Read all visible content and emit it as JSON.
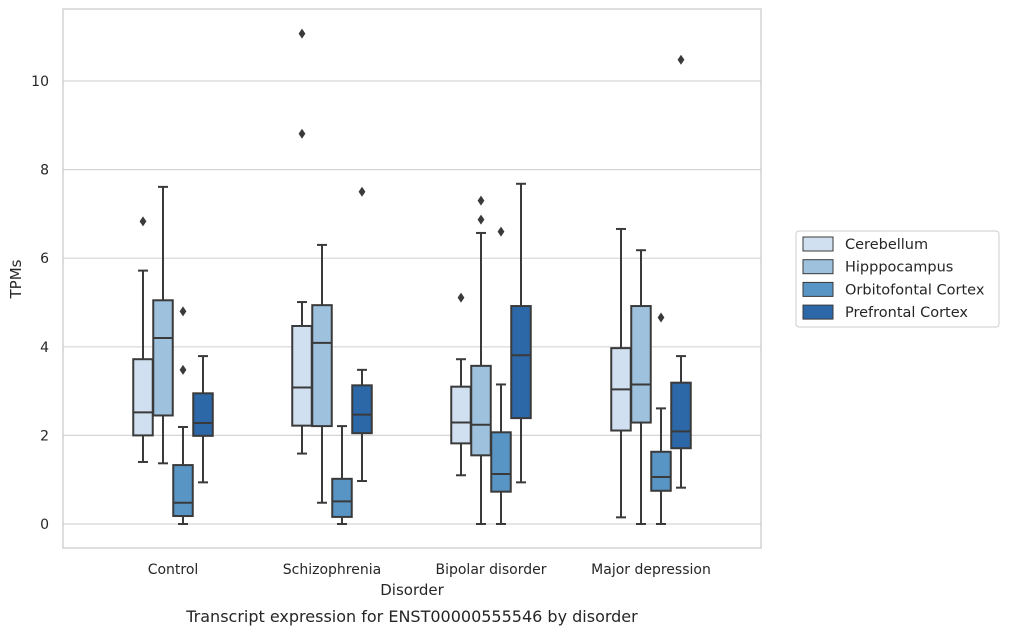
{
  "chart_data": {
    "type": "box",
    "title": "",
    "caption": "Transcript expression for ENST00000555546 by disorder",
    "xlabel": "Disorder",
    "ylabel": "TPMs",
    "ylim": [
      -0.55,
      11.6
    ],
    "yticks": [
      0,
      2,
      4,
      6,
      8,
      10
    ],
    "grid": "horizontal",
    "legend_position": "right",
    "categories": [
      "Control",
      "Schizophrenia",
      "Bipolar disorder",
      "Major depression"
    ],
    "series": [
      {
        "name": "Cerebellum",
        "color": "#d0e0f0",
        "boxes": [
          {
            "whisker_low": 1.4,
            "q1": 2.0,
            "median": 2.52,
            "q3": 3.72,
            "whisker_high": 5.72,
            "outliers": [
              6.83
            ]
          },
          {
            "whisker_low": 1.59,
            "q1": 2.22,
            "median": 3.08,
            "q3": 4.47,
            "whisker_high": 5.01,
            "outliers": [
              8.81,
              11.07
            ]
          },
          {
            "whisker_low": 1.1,
            "q1": 1.82,
            "median": 2.29,
            "q3": 3.1,
            "whisker_high": 3.72,
            "outliers": [
              5.11
            ]
          },
          {
            "whisker_low": 0.15,
            "q1": 2.11,
            "median": 3.04,
            "q3": 3.97,
            "whisker_high": 6.66,
            "outliers": []
          }
        ]
      },
      {
        "name": "Hipppocampus",
        "color": "#9ec2dd",
        "boxes": [
          {
            "whisker_low": 1.37,
            "q1": 2.45,
            "median": 4.2,
            "q3": 5.05,
            "whisker_high": 7.61,
            "outliers": []
          },
          {
            "whisker_low": 0.48,
            "q1": 2.21,
            "median": 4.09,
            "q3": 4.94,
            "whisker_high": 6.3,
            "outliers": []
          },
          {
            "whisker_low": 0.0,
            "q1": 1.55,
            "median": 2.24,
            "q3": 3.57,
            "whisker_high": 6.57,
            "outliers": [
              6.87,
              7.3
            ]
          },
          {
            "whisker_low": 0.0,
            "q1": 2.29,
            "median": 3.15,
            "q3": 4.92,
            "whisker_high": 6.18,
            "outliers": []
          }
        ]
      },
      {
        "name": "Orbitofontal Cortex",
        "color": "#5895c5",
        "boxes": [
          {
            "whisker_low": 0.0,
            "q1": 0.18,
            "median": 0.48,
            "q3": 1.33,
            "whisker_high": 2.19,
            "outliers": [
              3.48,
              4.8
            ]
          },
          {
            "whisker_low": 0.0,
            "q1": 0.16,
            "median": 0.51,
            "q3": 1.02,
            "whisker_high": 2.21,
            "outliers": []
          },
          {
            "whisker_low": 0.0,
            "q1": 0.73,
            "median": 1.13,
            "q3": 2.07,
            "whisker_high": 3.15,
            "outliers": [
              6.6
            ]
          },
          {
            "whisker_low": 0.0,
            "q1": 0.75,
            "median": 1.06,
            "q3": 1.63,
            "whisker_high": 2.61,
            "outliers": [
              4.66
            ]
          }
        ]
      },
      {
        "name": "Prefrontal Cortex",
        "color": "#2c67a8",
        "boxes": [
          {
            "whisker_low": 0.94,
            "q1": 1.99,
            "median": 2.28,
            "q3": 2.95,
            "whisker_high": 3.79,
            "outliers": []
          },
          {
            "whisker_low": 0.97,
            "q1": 2.05,
            "median": 2.47,
            "q3": 3.13,
            "whisker_high": 3.48,
            "outliers": [
              7.5
            ]
          },
          {
            "whisker_low": 0.94,
            "q1": 2.39,
            "median": 3.81,
            "q3": 4.92,
            "whisker_high": 7.68,
            "outliers": []
          },
          {
            "whisker_low": 0.82,
            "q1": 1.71,
            "median": 2.09,
            "q3": 3.19,
            "whisker_high": 3.79,
            "outliers": [
              10.48
            ]
          }
        ]
      }
    ]
  }
}
